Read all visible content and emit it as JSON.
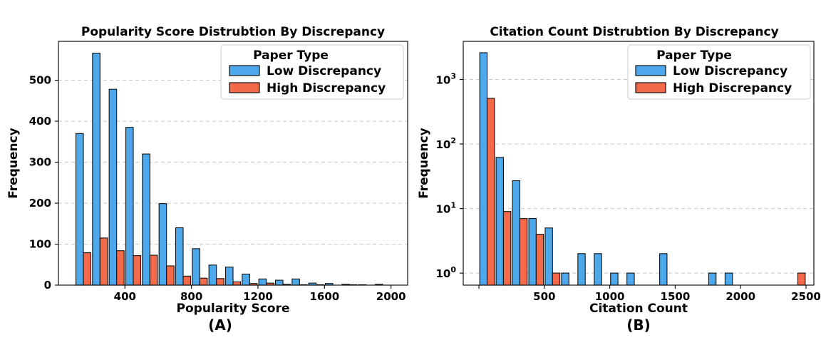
{
  "colors": {
    "low": "#4ea8ec",
    "high": "#f26a4a",
    "edge": "#111111",
    "grid": "#c8c8c8"
  },
  "chart_data": [
    {
      "type": "bar",
      "panel_label": "(A)",
      "title": "Popularity Score Distrubtion By Discrepancy",
      "xlabel": "Popularity Score",
      "ylabel": "Frequency",
      "xlim": [
        0,
        2100
      ],
      "ylim": [
        0,
        595
      ],
      "yscale": "linear",
      "xticks": [
        400,
        800,
        1200,
        1600,
        2000
      ],
      "xtick_labels": [
        "400",
        "800",
        "1200",
        "1600",
        "2000"
      ],
      "yticks": [
        0,
        100,
        200,
        300,
        400,
        500
      ],
      "ytick_labels": [
        "0",
        "100",
        "200",
        "300",
        "400",
        "500"
      ],
      "grid": "y-dashed",
      "legend": {
        "title": "Paper Type",
        "position": "top-right"
      },
      "bin_width": 100,
      "bin_centers": [
        150,
        250,
        350,
        450,
        550,
        650,
        750,
        850,
        950,
        1050,
        1150,
        1250,
        1350,
        1450,
        1550,
        1650,
        1750,
        1850,
        1950
      ],
      "series": [
        {
          "name": "Low Discrepancy",
          "color_key": "low",
          "values": [
            370,
            566,
            478,
            385,
            320,
            199,
            140,
            89,
            49,
            44,
            27,
            15,
            12,
            15,
            5,
            4,
            2,
            1,
            2
          ]
        },
        {
          "name": "High Discrepancy",
          "color_key": "high",
          "values": [
            79,
            115,
            84,
            72,
            73,
            47,
            22,
            17,
            16,
            8,
            4,
            5,
            2,
            1,
            1,
            0,
            1,
            0,
            0
          ]
        }
      ]
    },
    {
      "type": "bar",
      "panel_label": "(B)",
      "title": "Citation Count Distrubtion By Discrepancy",
      "xlabel": "Citation Count",
      "ylabel": "Frequency",
      "xlim": [
        -120,
        2560
      ],
      "ylim": [
        0.65,
        3900
      ],
      "yscale": "log",
      "xticks": [
        0,
        500,
        1000,
        1500,
        2000,
        2500
      ],
      "xtick_labels": [
        "",
        "500",
        "1000",
        "1500",
        "2000",
        "2500"
      ],
      "yticks": [
        1,
        10,
        100,
        1000
      ],
      "ytick_base": "10",
      "ytick_exponents": [
        "0",
        "1",
        "2",
        "3"
      ],
      "grid": "y-dashed",
      "legend": {
        "title": "Paper Type",
        "position": "top-right"
      },
      "bin_width": 125,
      "bin_centers": [
        62.5,
        187.5,
        312.5,
        437.5,
        562.5,
        687.5,
        812.5,
        937.5,
        1062.5,
        1187.5,
        1312.5,
        1437.5,
        1562.5,
        1687.5,
        1812.5,
        1937.5,
        2062.5,
        2187.5,
        2312.5,
        2437.5
      ],
      "series": [
        {
          "name": "Low Discrepancy",
          "color_key": "low",
          "values": [
            2600,
            62,
            27,
            7,
            5,
            1,
            2,
            2,
            1,
            1,
            0,
            2,
            0,
            0,
            1,
            1,
            0,
            0,
            0,
            0
          ]
        },
        {
          "name": "High Discrepancy",
          "color_key": "high",
          "values": [
            510,
            9,
            7,
            4,
            1,
            0,
            0,
            0,
            0,
            0,
            0,
            0,
            0,
            0,
            0,
            0,
            0,
            0,
            0,
            1
          ]
        }
      ]
    }
  ]
}
